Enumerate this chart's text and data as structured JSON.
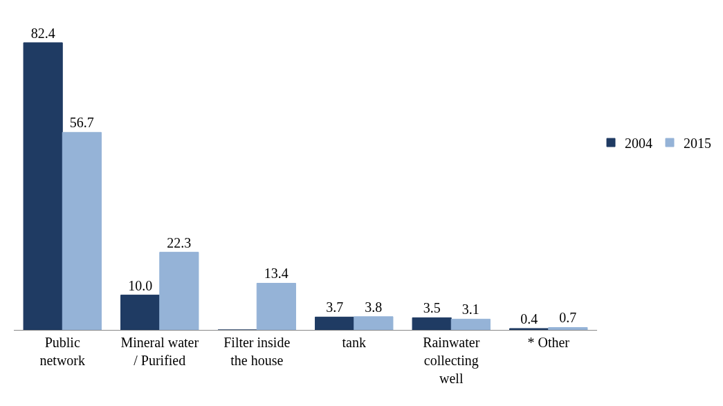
{
  "chart_data": {
    "type": "bar",
    "categories": [
      "Public network",
      "Mineral water / Purified",
      "Filter inside the house",
      "tank",
      "Rainwater collecting well",
      "* Other"
    ],
    "series": [
      {
        "name": "2004",
        "color": "#1f3b63",
        "values": [
          82.4,
          10.0,
          0,
          3.7,
          3.5,
          0.4
        ],
        "value_labels": [
          "82.4",
          "10.0",
          null,
          "3.7",
          "3.5",
          "0.4"
        ]
      },
      {
        "name": "2015",
        "color": "#95b3d7",
        "values": [
          56.7,
          22.3,
          13.4,
          3.8,
          3.1,
          0.7
        ],
        "value_labels": [
          "56.7",
          "22.3",
          "13.4",
          "3.8",
          "3.1",
          "0.7"
        ]
      }
    ],
    "legend": "right",
    "grid": false
  }
}
